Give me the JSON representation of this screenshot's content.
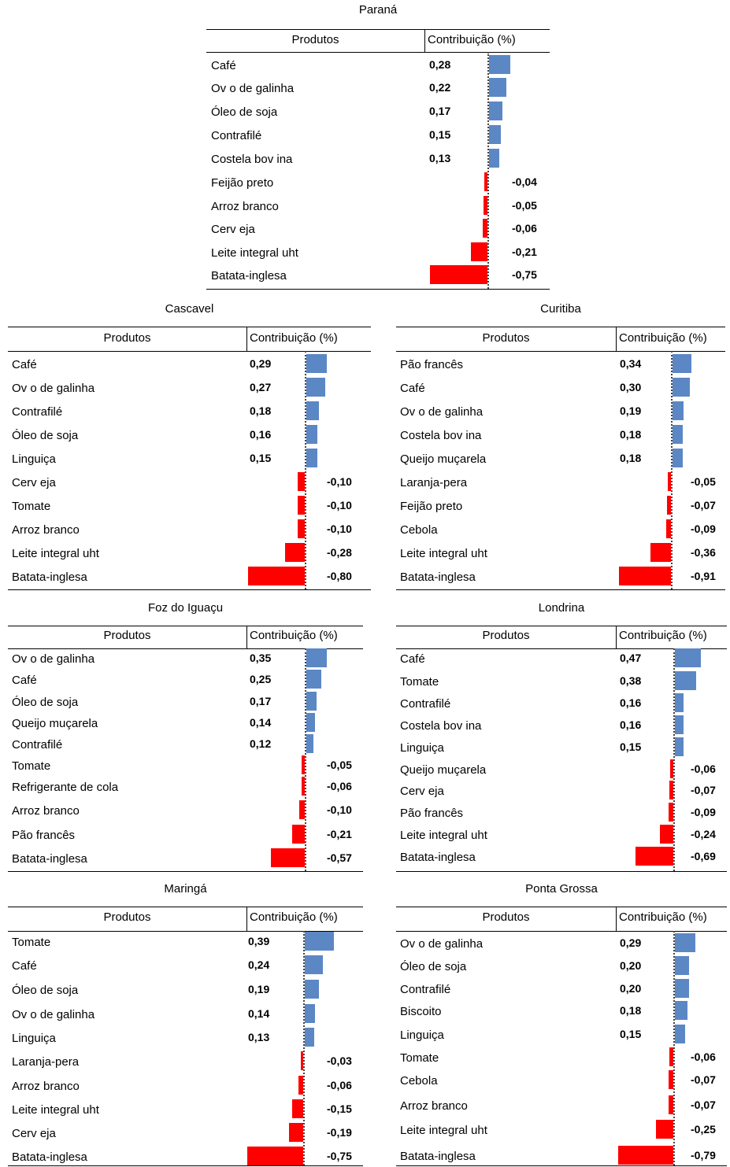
{
  "header": {
    "col_products": "Produtos",
    "col_contribution": "Contribuição (%)"
  },
  "colors": {
    "positive": "#5b87c5",
    "negative": "#ff0000"
  },
  "chart_data": [
    {
      "type": "bar",
      "orientation": "horizontal",
      "title": "Paraná",
      "categories": [
        "Café",
        "Ovo de galinha",
        "Óleo de soja",
        "Contrafilé",
        "Costela bovina",
        "Feijão preto",
        "Arroz branco",
        "Cerveja",
        "Leite integral uht",
        "Batata-inglesa"
      ],
      "labels": [
        "Café",
        "Ov o de galinha",
        "Óleo de soja",
        "Contrafilé",
        "Costela bov ina",
        "Feijão preto",
        "Arroz branco",
        "Cerv eja",
        "Leite integral uht",
        "Batata-inglesa"
      ],
      "values": [
        0.28,
        0.22,
        0.17,
        0.15,
        0.13,
        -0.04,
        -0.05,
        -0.06,
        -0.21,
        -0.75
      ],
      "value_labels": [
        "0,28",
        "0,22",
        "0,17",
        "0,15",
        "0,13",
        "-0,04",
        "-0,05",
        "-0,06",
        "-0,21",
        "-0,75"
      ]
    },
    {
      "type": "bar",
      "orientation": "horizontal",
      "title": "Cascavel",
      "categories": [
        "Café",
        "Ovo de galinha",
        "Contrafilé",
        "Óleo de soja",
        "Linguiça",
        "Cerveja",
        "Tomate",
        "Arroz branco",
        "Leite integral uht",
        "Batata-inglesa"
      ],
      "labels": [
        "Café",
        "Ov o de galinha",
        "Contrafilé",
        "Óleo de soja",
        "Linguiça",
        "Cerv eja",
        "Tomate",
        "Arroz branco",
        "Leite integral uht",
        "Batata-inglesa"
      ],
      "values": [
        0.29,
        0.27,
        0.18,
        0.16,
        0.15,
        -0.1,
        -0.1,
        -0.1,
        -0.28,
        -0.8
      ],
      "value_labels": [
        "0,29",
        "0,27",
        "0,18",
        "0,16",
        "0,15",
        "-0,10",
        "-0,10",
        "-0,10",
        "-0,28",
        "-0,80"
      ]
    },
    {
      "type": "bar",
      "orientation": "horizontal",
      "title": "Curitiba",
      "categories": [
        "Pão francês",
        "Café",
        "Ovo de galinha",
        "Costela bovina",
        "Queijo muçarela",
        "Laranja-pera",
        "Feijão preto",
        "Cebola",
        "Leite integral uht",
        "Batata-inglesa"
      ],
      "labels": [
        "Pão francês",
        "Café",
        "Ov o de galinha",
        "Costela bov ina",
        "Queijo muçarela",
        "Laranja-pera",
        "Feijão preto",
        "Cebola",
        "Leite integral uht",
        "Batata-inglesa"
      ],
      "values": [
        0.34,
        0.3,
        0.19,
        0.18,
        0.18,
        -0.05,
        -0.07,
        -0.09,
        -0.36,
        -0.91
      ],
      "value_labels": [
        "0,34",
        "0,30",
        "0,19",
        "0,18",
        "0,18",
        "-0,05",
        "-0,07",
        "-0,09",
        "-0,36",
        "-0,91"
      ]
    },
    {
      "type": "bar",
      "orientation": "horizontal",
      "title": "Foz do Iguaçu",
      "categories": [
        "Ovo de galinha",
        "Café",
        "Óleo de soja",
        "Queijo muçarela",
        "Contrafilé",
        "Tomate",
        "Refrigerante de cola",
        "Arroz branco",
        "Pão francês",
        "Batata-inglesa"
      ],
      "labels": [
        "Ov o de galinha",
        "Café",
        "Óleo de soja",
        "Queijo muçarela",
        "Contrafilé",
        "Tomate",
        "Refrigerante de cola",
        "Arroz branco",
        "Pão francês",
        "Batata-inglesa"
      ],
      "values": [
        0.35,
        0.25,
        0.17,
        0.14,
        0.12,
        -0.05,
        -0.06,
        -0.1,
        -0.21,
        -0.57
      ],
      "value_labels": [
        "0,35",
        "0,25",
        "0,17",
        "0,14",
        "0,12",
        "-0,05",
        "-0,06",
        "-0,10",
        "-0,21",
        "-0,57"
      ]
    },
    {
      "type": "bar",
      "orientation": "horizontal",
      "title": "Londrina",
      "categories": [
        "Café",
        "Tomate",
        "Contrafilé",
        "Costela bovina",
        "Linguiça",
        "Queijo muçarela",
        "Cerveja",
        "Pão francês",
        "Leite integral uht",
        "Batata-inglesa"
      ],
      "labels": [
        "Café",
        "Tomate",
        "Contrafilé",
        "Costela bov ina",
        "Linguiça",
        "Queijo muçarela",
        "Cerv eja",
        "Pão francês",
        "Leite integral uht",
        "Batata-inglesa"
      ],
      "values": [
        0.47,
        0.38,
        0.16,
        0.16,
        0.15,
        -0.06,
        -0.07,
        -0.09,
        -0.24,
        -0.69
      ],
      "value_labels": [
        "0,47",
        "0,38",
        "0,16",
        "0,16",
        "0,15",
        "-0,06",
        "-0,07",
        "-0,09",
        "-0,24",
        "-0,69"
      ]
    },
    {
      "type": "bar",
      "orientation": "horizontal",
      "title": "Maringá",
      "categories": [
        "Tomate",
        "Café",
        "Óleo de soja",
        "Ovo de galinha",
        "Linguiça",
        "Laranja-pera",
        "Arroz branco",
        "Leite integral uht",
        "Cerveja",
        "Batata-inglesa"
      ],
      "labels": [
        "Tomate",
        "Café",
        "Óleo de soja",
        "Ov o de galinha",
        "Linguiça",
        "Laranja-pera",
        "Arroz branco",
        "Leite integral uht",
        "Cerv eja",
        "Batata-inglesa"
      ],
      "values": [
        0.39,
        0.24,
        0.19,
        0.14,
        0.13,
        -0.03,
        -0.06,
        -0.15,
        -0.19,
        -0.75
      ],
      "value_labels": [
        "0,39",
        "0,24",
        "0,19",
        "0,14",
        "0,13",
        "-0,03",
        "-0,06",
        "-0,15",
        "-0,19",
        "-0,75"
      ]
    },
    {
      "type": "bar",
      "orientation": "horizontal",
      "title": "Ponta Grossa",
      "categories": [
        "Ovo de galinha",
        "Óleo de soja",
        "Contrafilé",
        "Biscoito",
        "Linguiça",
        "Tomate",
        "Cebola",
        "Arroz branco",
        "Leite integral uht",
        "Batata-inglesa"
      ],
      "labels": [
        "Ov o de galinha",
        "Óleo de soja",
        "Contrafilé",
        "Biscoito",
        "Linguiça",
        "Tomate",
        "Cebola",
        "Arroz branco",
        "Leite integral uht",
        "Batata-inglesa"
      ],
      "values": [
        0.29,
        0.2,
        0.2,
        0.18,
        0.15,
        -0.06,
        -0.07,
        -0.07,
        -0.25,
        -0.79
      ],
      "value_labels": [
        "0,29",
        "0,20",
        "0,20",
        "0,18",
        "0,15",
        "-0,06",
        "-0,07",
        "-0,07",
        "-0,25",
        "-0,79"
      ]
    }
  ]
}
